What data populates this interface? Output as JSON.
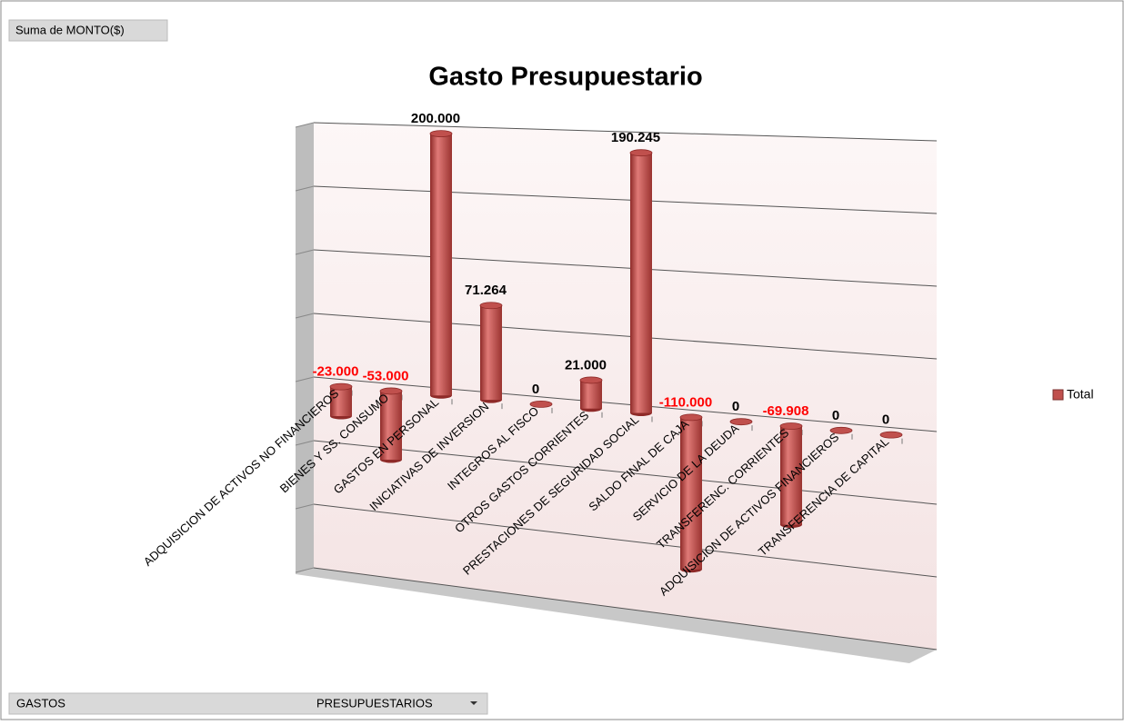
{
  "pivot_button": "Suma de MONTO($)",
  "filter": {
    "field": "GASTOS",
    "value": "PRESUPUESTARIOS"
  },
  "chart_data": {
    "type": "bar3d",
    "title": "Gasto Presupuestario",
    "categories": [
      "ADQUISICION DE ACTIVOS NO FINANCIEROS",
      "BIENES  Y SS. CONSUMO",
      "GASTOS EN PERSONAL",
      "INICIATIVAS DE INVERSION",
      "INTEGROS AL FISCO",
      "OTROS GASTOS CORRIENTES",
      "PRESTACIONES DE SEGURIDAD SOCIAL",
      "SALDO FINAL DE CAJA",
      "SERVICIO DE LA DEUDA",
      "TRANSFERENC. CORRIENTES",
      "ADQUISICION DE ACTIVOS  FINANCIEROS",
      "TRANSFERENCIA DE CAPITAL"
    ],
    "series": [
      {
        "name": "Total",
        "color": "#c0504d",
        "values": [
          -23000,
          -53000,
          200000,
          71264,
          0,
          21000,
          190245,
          -110000,
          0,
          -69908,
          0,
          0
        ],
        "value_labels": [
          "-23.000",
          "-53.000",
          "200.000",
          "71.264",
          "0",
          "21.000",
          "190.245",
          "-110.000",
          "0",
          "-69.908",
          "0",
          "0"
        ]
      }
    ],
    "ylim": [
      -150000,
      200000
    ],
    "yticks": [
      -150000,
      -100000,
      -50000,
      0,
      50000,
      100000,
      150000,
      200000
    ],
    "grid": true,
    "legend": "right"
  }
}
